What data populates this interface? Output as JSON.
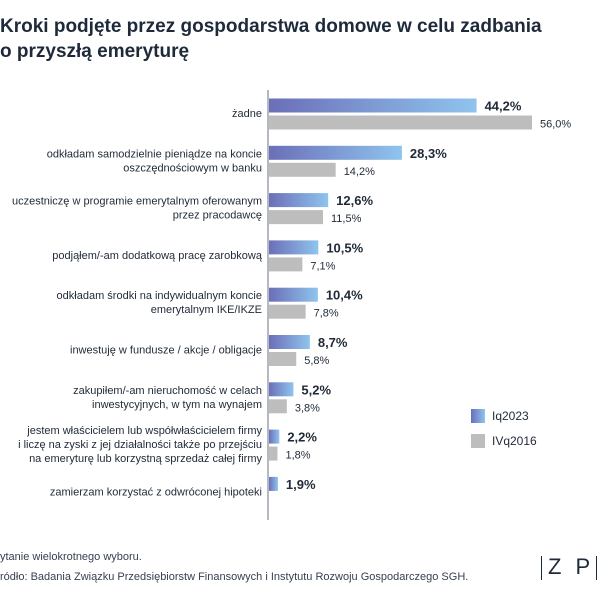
{
  "title_lines": [
    "Kroki podjęte przez gospodarstwa domowe w celu zadbania",
    "o przyszłą emeryturę"
  ],
  "footnote": "ytanie wielokrotnego wyboru.",
  "source": "ródło: Badania Związku Przedsiębiorstw Finansowych i Instytutu Rozwoju Gospodarczego SGH.",
  "logo_text": "Z P",
  "colors": {
    "series1_start": "#6b6fb8",
    "series1_end": "#8fc4ee",
    "series2": "#bdbdbd",
    "axis": "#6b7280",
    "text": "#1f2937"
  },
  "chart_data": {
    "type": "bar",
    "orientation": "horizontal",
    "categories": [
      [
        "żadne"
      ],
      [
        "odkładam samodzielnie pieniądze na koncie",
        "oszczędnościowym w banku"
      ],
      [
        "uczestniczę w programie emerytalnym oferowanym",
        "przez pracodawcę"
      ],
      [
        "podjąłem/-am dodatkową pracę zarobkową"
      ],
      [
        "odkładam środki na indywidualnym koncie",
        "emerytalnym IKE/IKZE"
      ],
      [
        "inwestuję w fundusze / akcje / obligacje"
      ],
      [
        "zakupiłem/-am nieruchomość w celach",
        "inwestycyjnych, w tym na wynajem"
      ],
      [
        "jestem właścicielem lub współwłaścicielem firmy",
        "i liczę na zyski z jej działalności także po przejściu",
        "na emeryturę lub korzystną sprzedaż całej firmy"
      ],
      [
        "zamierzam korzystać z odwróconej hipoteki"
      ]
    ],
    "series": [
      {
        "name": "Iq2023",
        "values": [
          44.2,
          28.3,
          12.6,
          10.5,
          10.4,
          8.7,
          5.2,
          2.2,
          1.9
        ],
        "labels": [
          "44,2%",
          "28,3%",
          "12,6%",
          "10,5%",
          "10,4%",
          "8,7%",
          "5,2%",
          "2,2%",
          "1,9%"
        ]
      },
      {
        "name": "IVq2016",
        "values": [
          56.0,
          14.2,
          11.5,
          7.1,
          7.8,
          5.8,
          3.8,
          1.8,
          null
        ],
        "labels": [
          "56,0%",
          "14,2%",
          "11,5%",
          "7,1%",
          "7,8%",
          "5,8%",
          "3,8%",
          "1,8%",
          null
        ]
      }
    ],
    "legend_position": "right",
    "units": "%",
    "xlim": [
      0,
      60
    ]
  }
}
